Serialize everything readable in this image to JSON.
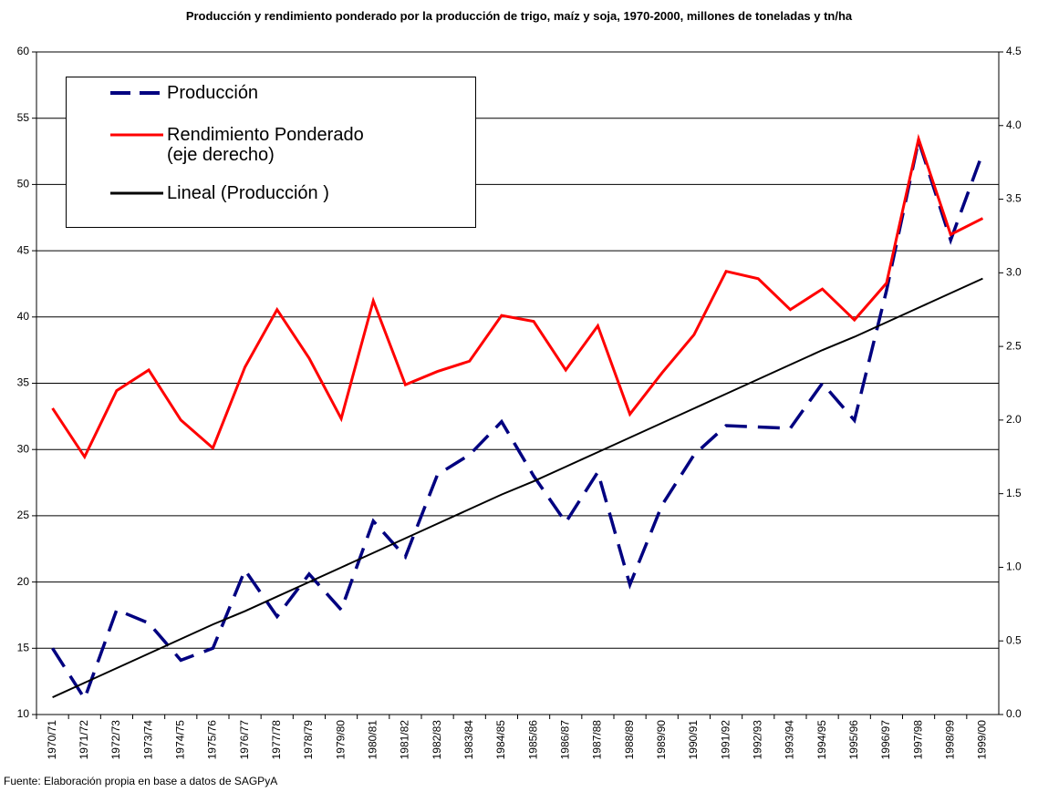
{
  "chart_data": {
    "type": "line",
    "title": "Producción y rendimiento ponderado por la producción de trigo, maíz y soja, 1970-2000, millones de toneladas y tn/ha",
    "footer": "Fuente: Elaboración propia en base a datos de SAGPyA",
    "categories": [
      "1970/71",
      "1971/72",
      "1972/73",
      "1973/74",
      "1974/75",
      "1975/76",
      "1976/77",
      "1977/78",
      "1978/79",
      "1979/80",
      "1980/81",
      "1981/82",
      "1982/83",
      "1983/84",
      "1984/85",
      "1985/86",
      "1986/87",
      "1987/88",
      "1988/89",
      "1989/90",
      "1990/91",
      "1991/92",
      "1992/93",
      "1993/94",
      "1994/95",
      "1995/96",
      "1996/97",
      "1997/98",
      "1998/99",
      "1999/00"
    ],
    "series": [
      {
        "name": "Producción",
        "color": "#000080",
        "dashed": true,
        "axis": "y",
        "values": [
          15.0,
          11.2,
          17.9,
          16.9,
          14.1,
          15.0,
          20.9,
          17.4,
          20.6,
          17.9,
          24.6,
          21.9,
          28.1,
          29.6,
          32.1,
          28.0,
          24.5,
          28.3,
          19.8,
          25.8,
          29.6,
          31.8,
          31.7,
          31.6,
          35.0,
          32.2,
          42.0,
          53.3,
          45.8,
          52.4
        ]
      },
      {
        "name": "Rendimiento Ponderado (eje derecho)",
        "color": "#ff0000",
        "dashed": false,
        "axis": "y2",
        "values": [
          2.08,
          1.75,
          2.2,
          2.34,
          2.0,
          1.81,
          2.36,
          2.75,
          2.42,
          2.01,
          2.81,
          2.24,
          2.33,
          2.4,
          2.71,
          2.67,
          2.34,
          2.64,
          2.04,
          2.32,
          2.58,
          3.01,
          2.96,
          2.75,
          2.89,
          2.68,
          2.93,
          3.91,
          3.26,
          3.37
        ]
      },
      {
        "name": "Lineal (Producción )",
        "color": "#000000",
        "dashed": false,
        "axis": "y",
        "values": [
          11.3,
          12.4,
          13.5,
          14.6,
          15.7,
          16.8,
          17.8,
          18.9,
          20.0,
          21.1,
          22.2,
          23.3,
          24.4,
          25.5,
          26.6,
          27.6,
          28.7,
          29.8,
          30.9,
          32.0,
          33.1,
          34.2,
          35.3,
          36.4,
          37.5,
          38.5,
          39.6,
          40.7,
          41.8,
          42.9
        ]
      }
    ],
    "ylim": [
      10,
      60
    ],
    "yticks": [
      10,
      15,
      20,
      25,
      30,
      35,
      40,
      45,
      50,
      55,
      60
    ],
    "y2lim": [
      0,
      4.5
    ],
    "y2ticks": [
      {
        "value": 0,
        "label": "0.0"
      },
      0.5,
      {
        "value": 1,
        "label": "1.0"
      },
      1.5,
      {
        "value": 2,
        "label": "2.0"
      },
      2.5,
      {
        "value": 3,
        "label": "3.0"
      },
      3.5,
      {
        "value": 4,
        "label": "4.0"
      },
      4.5
    ],
    "grid": true,
    "legend": "upper left"
  }
}
